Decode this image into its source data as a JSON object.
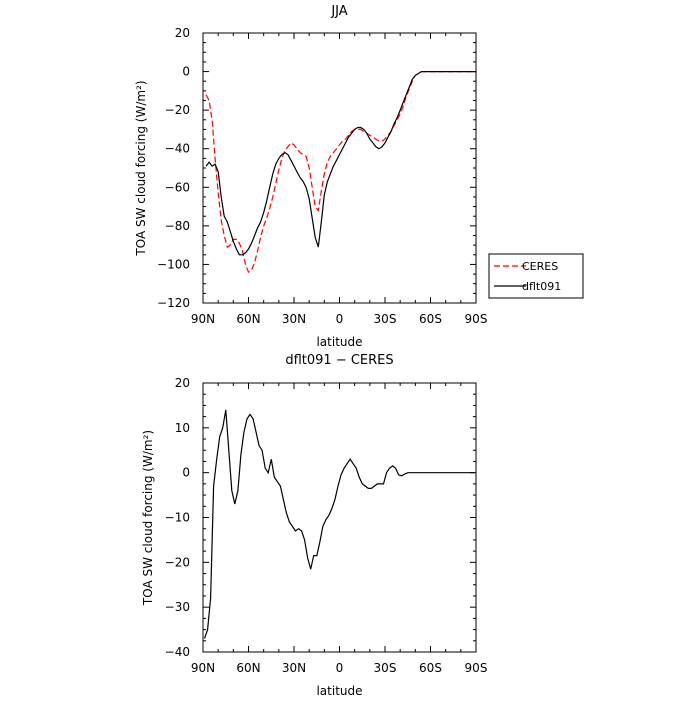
{
  "chart_data": [
    {
      "type": "line",
      "title": "JJA",
      "xlabel": "latitude",
      "ylabel": "TOA SW cloud forcing (W/m²)",
      "xlim": [
        90,
        -90
      ],
      "ylim": [
        -120,
        20
      ],
      "x_ticks": [
        90,
        60,
        30,
        0,
        -30,
        -60,
        -90
      ],
      "x_tick_labels": [
        "90N",
        "60N",
        "30N",
        "0",
        "30S",
        "60S",
        "90S"
      ],
      "y_ticks": [
        -120,
        -100,
        -80,
        -60,
        -40,
        -20,
        0,
        20
      ],
      "y_tick_labels": [
        "−120",
        "−100",
        "−80",
        "−60",
        "−40",
        "−20",
        "0",
        "20"
      ],
      "grid": false,
      "legend_position": "outside-right",
      "series": [
        {
          "name": "CERES",
          "color": "#ff0000",
          "dash": "dashed",
          "x": [
            88,
            86,
            84,
            82,
            80,
            78,
            76,
            74,
            72,
            70,
            68,
            66,
            64,
            62,
            60,
            58,
            56,
            54,
            52,
            50,
            48,
            46,
            44,
            42,
            40,
            38,
            36,
            34,
            32,
            30,
            28,
            26,
            24,
            22,
            20,
            18,
            16,
            14,
            12,
            10,
            8,
            6,
            4,
            2,
            0,
            -2,
            -4,
            -6,
            -8,
            -10,
            -12,
            -14,
            -16,
            -18,
            -20,
            -22,
            -24,
            -26,
            -28,
            -30,
            -32,
            -34,
            -36,
            -38,
            -40,
            -42,
            -44,
            -46,
            -48,
            -50,
            -52,
            -54,
            -56,
            -58,
            -60,
            -62,
            -64,
            -66,
            -68,
            -70,
            -72,
            -74,
            -76,
            -78,
            -80,
            -82,
            -84,
            -86,
            -88,
            -90
          ],
          "y": [
            -12,
            -15,
            -25,
            -45,
            -63,
            -77,
            -85,
            -91,
            -90,
            -87,
            -87,
            -89,
            -93,
            -100,
            -104,
            -103,
            -99,
            -93,
            -86,
            -80,
            -76,
            -71,
            -65,
            -58,
            -51,
            -45,
            -41,
            -39,
            -37,
            -38,
            -40,
            -42,
            -43,
            -44,
            -50,
            -60,
            -70,
            -72,
            -62,
            -53,
            -47,
            -44,
            -42,
            -40,
            -38,
            -36,
            -35,
            -33,
            -31,
            -30,
            -30,
            -30,
            -31,
            -32,
            -33,
            -34,
            -35,
            -36,
            -36,
            -35,
            -33,
            -31,
            -28,
            -25,
            -22,
            -18,
            -13,
            -9,
            -5,
            -2,
            -1,
            0,
            0,
            0,
            0,
            0,
            0,
            0,
            0,
            0,
            0,
            0,
            0,
            0,
            0,
            0,
            0,
            0,
            0,
            0
          ]
        },
        {
          "name": "dflt091",
          "color": "#000000",
          "dash": "solid",
          "x": [
            88,
            86,
            84,
            82,
            80,
            78,
            76,
            74,
            72,
            70,
            68,
            66,
            64,
            62,
            60,
            58,
            56,
            54,
            52,
            50,
            48,
            46,
            44,
            42,
            40,
            38,
            36,
            34,
            32,
            30,
            28,
            26,
            24,
            22,
            20,
            18,
            16,
            14,
            12,
            10,
            8,
            6,
            4,
            2,
            0,
            -2,
            -4,
            -6,
            -8,
            -10,
            -12,
            -14,
            -16,
            -18,
            -20,
            -22,
            -24,
            -26,
            -28,
            -30,
            -32,
            -34,
            -36,
            -38,
            -40,
            -42,
            -44,
            -46,
            -48,
            -50,
            -52,
            -54,
            -56,
            -58,
            -60,
            -62,
            -64,
            -66,
            -68,
            -70,
            -72,
            -74,
            -76,
            -78,
            -80,
            -82,
            -84,
            -86,
            -88,
            -90
          ],
          "y": [
            -49,
            -47,
            -49,
            -48,
            -52,
            -65,
            -75,
            -78,
            -83,
            -88,
            -92,
            -95,
            -95,
            -94,
            -92,
            -89,
            -85,
            -81,
            -78,
            -73,
            -67,
            -60,
            -53,
            -48,
            -45,
            -43,
            -42,
            -43,
            -46,
            -49,
            -52,
            -55,
            -57,
            -60,
            -66,
            -76,
            -86,
            -91,
            -78,
            -64,
            -57,
            -53,
            -49,
            -46,
            -43,
            -40,
            -37,
            -34,
            -32,
            -30,
            -29,
            -29,
            -30,
            -32,
            -35,
            -37,
            -39,
            -40,
            -39,
            -37,
            -34,
            -31,
            -27,
            -24,
            -20,
            -16,
            -12,
            -8,
            -4,
            -2,
            -1,
            0,
            0,
            0,
            0,
            0,
            0,
            0,
            0,
            0,
            0,
            0,
            0,
            0,
            0,
            0,
            0,
            0,
            0,
            0
          ]
        }
      ]
    },
    {
      "type": "line",
      "title": "dflt091 − CERES",
      "xlabel": "latitude",
      "ylabel": "TOA SW cloud forcing (W/m²)",
      "xlim": [
        90,
        -90
      ],
      "ylim": [
        -40,
        20
      ],
      "x_ticks": [
        90,
        60,
        30,
        0,
        -30,
        -60,
        -90
      ],
      "x_tick_labels": [
        "90N",
        "60N",
        "30N",
        "0",
        "30S",
        "60S",
        "90S"
      ],
      "y_ticks": [
        -40,
        -30,
        -20,
        -10,
        0,
        10,
        20
      ],
      "y_tick_labels": [
        "−40",
        "−30",
        "−20",
        "−10",
        "0",
        "10",
        "20"
      ],
      "grid": false,
      "series": [
        {
          "color": "#000000",
          "dash": "solid",
          "x": [
            89,
            87,
            85,
            83,
            81,
            79,
            77,
            75,
            73,
            71,
            69,
            67,
            65,
            63,
            61,
            59,
            57,
            55,
            53,
            51,
            49,
            47,
            45,
            43,
            41,
            39,
            37,
            35,
            33,
            31,
            29,
            27,
            25,
            23,
            21,
            19,
            17,
            15,
            13,
            11,
            9,
            7,
            5,
            3,
            1,
            -1,
            -3,
            -5,
            -7,
            -9,
            -11,
            -13,
            -15,
            -17,
            -19,
            -21,
            -23,
            -25,
            -27,
            -29,
            -31,
            -33,
            -35,
            -37,
            -39,
            -41,
            -43,
            -45,
            -47,
            -49,
            -51,
            -53,
            -55,
            -57,
            -59,
            -61,
            -63,
            -65,
            -67,
            -69,
            -71,
            -73,
            -75,
            -77,
            -79,
            -81,
            -83,
            -85,
            -87,
            -89
          ],
          "y": [
            -37,
            -35,
            -28,
            -3,
            3,
            8,
            10,
            14,
            5,
            -4,
            -7,
            -4,
            4,
            9,
            12,
            13,
            12,
            9,
            6,
            5,
            1,
            0,
            3,
            -1,
            -2,
            -3,
            -6,
            -9,
            -11,
            -12,
            -13,
            -12.5,
            -13,
            -15,
            -19,
            -21.5,
            -18.5,
            -18.5,
            -15.5,
            -12,
            -10.5,
            -9.5,
            -8,
            -6,
            -3,
            -0.5,
            1,
            2,
            3,
            2,
            1,
            -1,
            -2.5,
            -3,
            -3.5,
            -3.5,
            -3,
            -2.5,
            -2.5,
            -2.5,
            0,
            1,
            1.5,
            1,
            -0.5,
            -0.7,
            -0.3,
            0,
            0,
            0,
            0,
            0,
            0,
            0,
            0,
            0,
            0,
            0,
            0,
            0,
            0,
            0,
            0,
            0,
            0,
            0,
            0,
            0,
            0,
            0
          ]
        }
      ]
    }
  ]
}
